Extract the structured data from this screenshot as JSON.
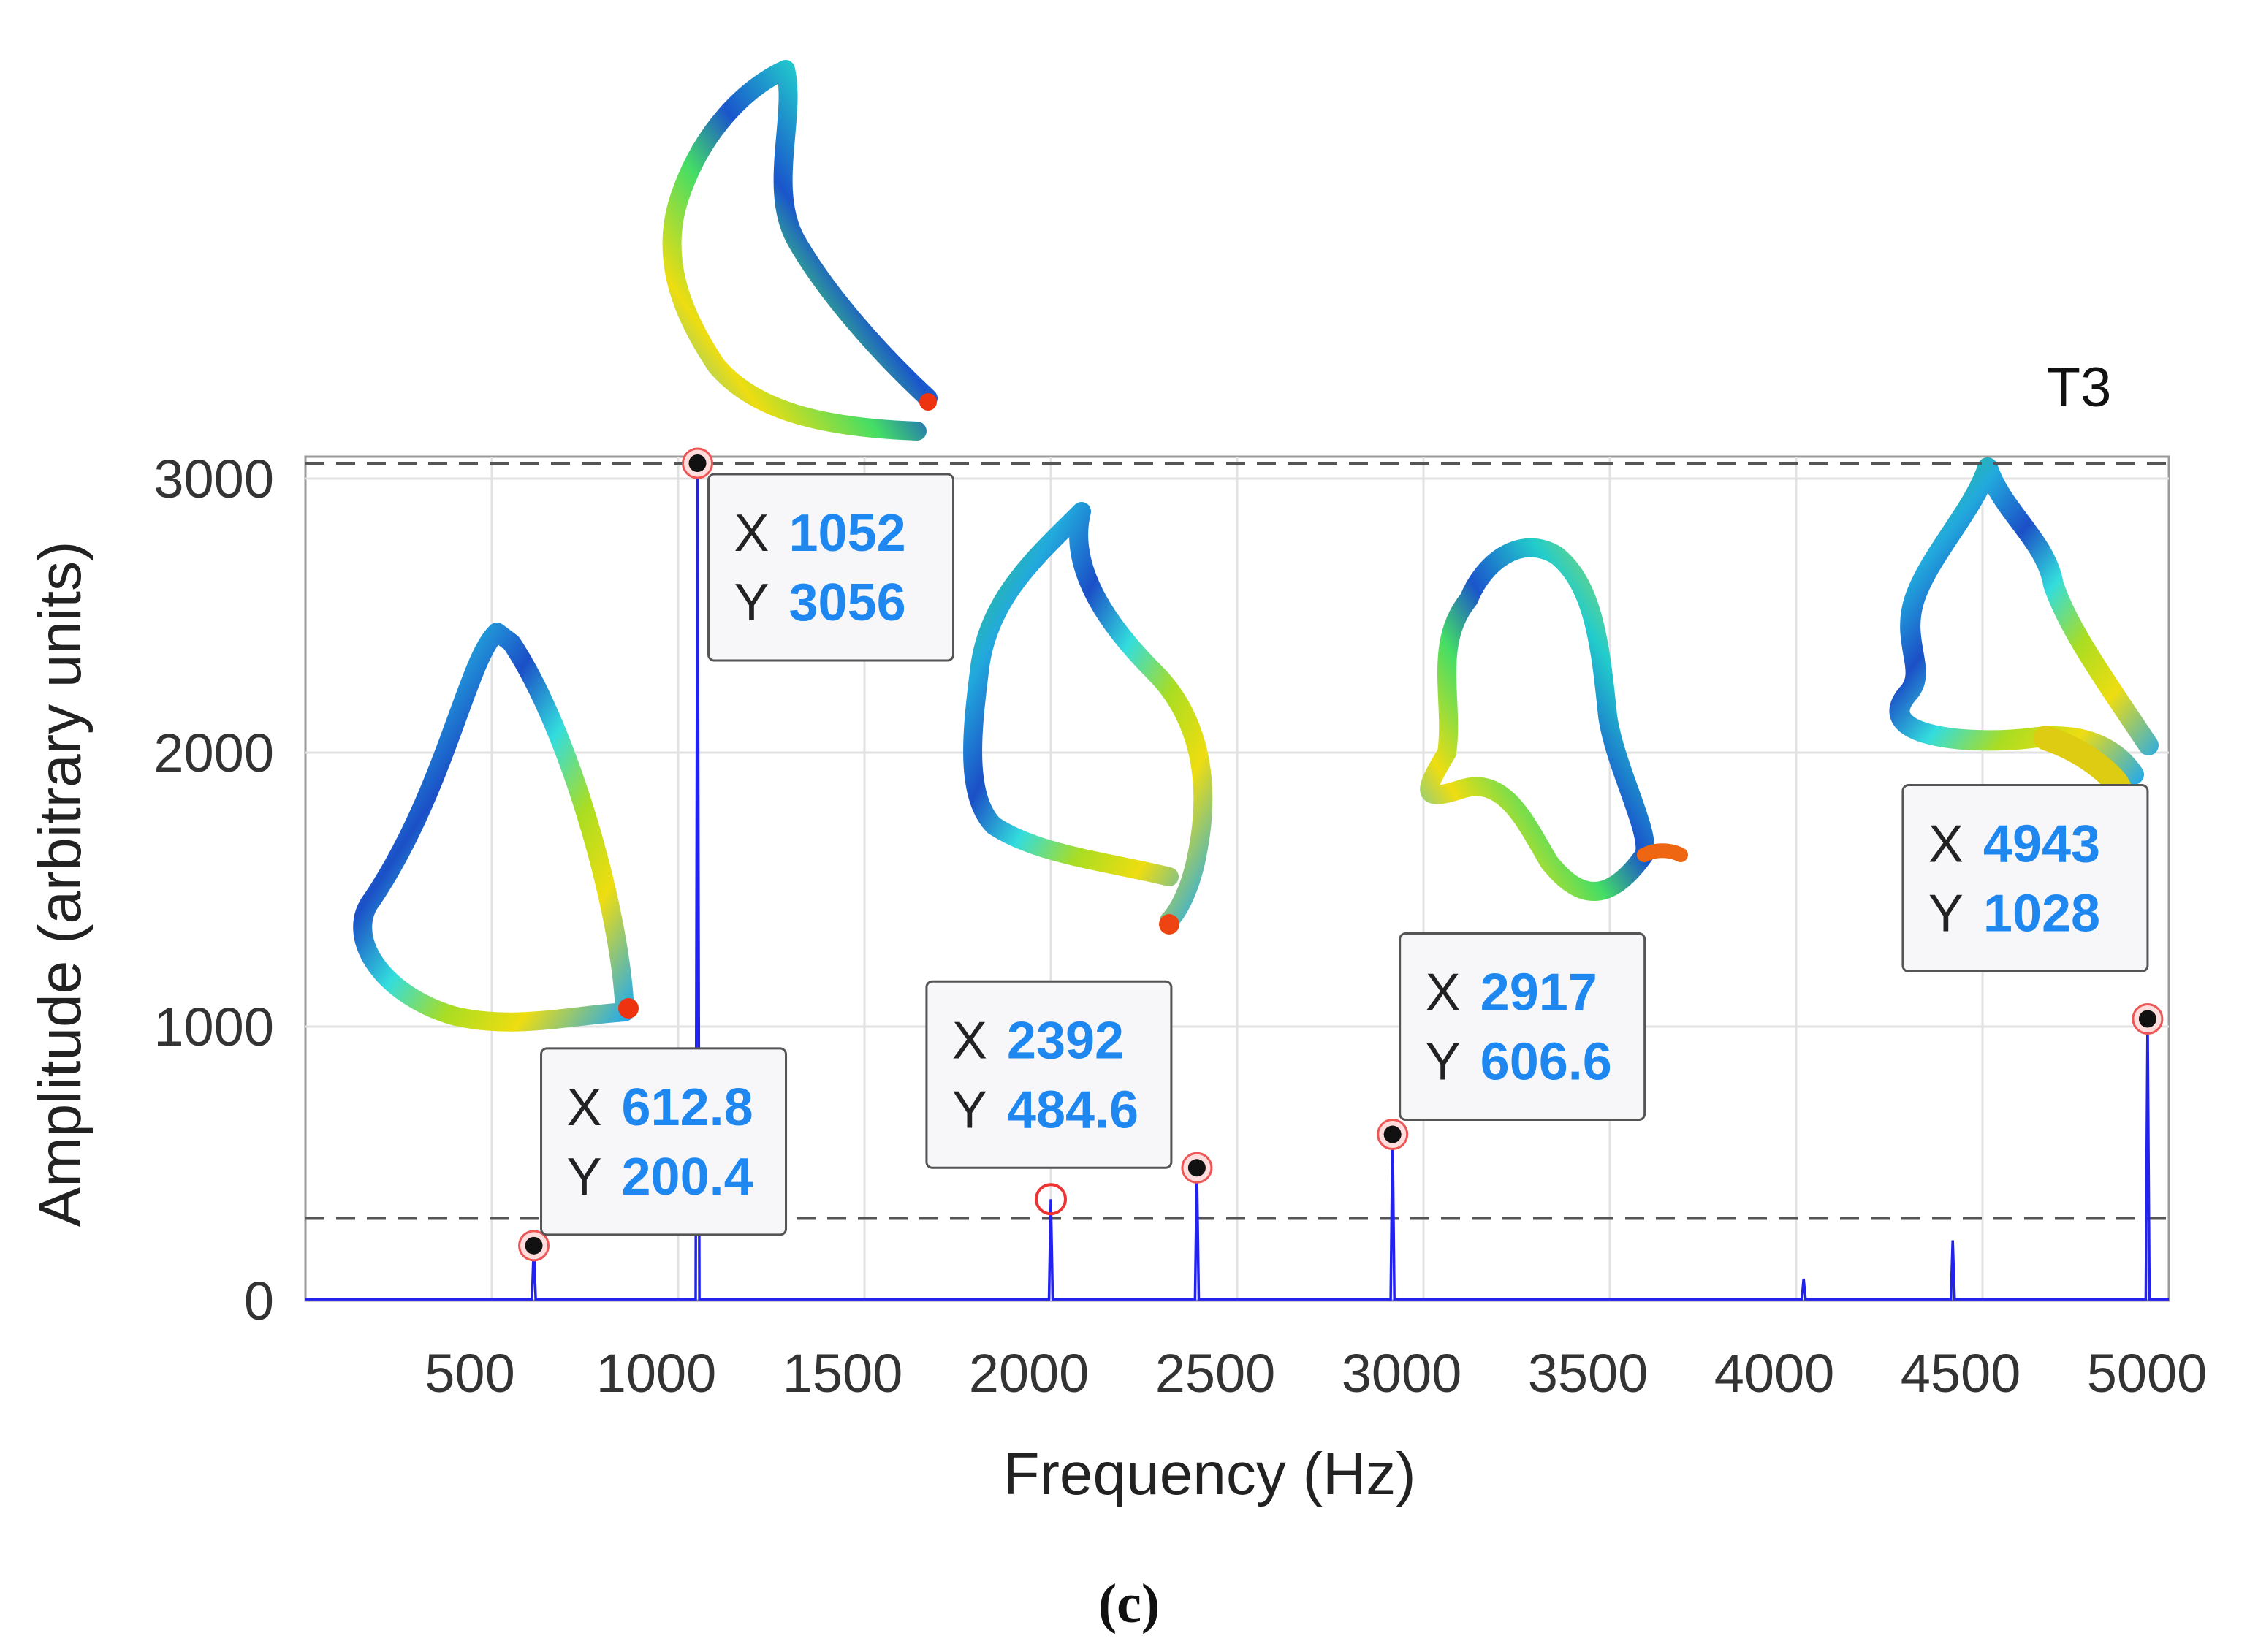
{
  "chart_data": {
    "type": "line",
    "xlabel": "Frequency (Hz)",
    "ylabel": "Amplitude (arbitrary units)",
    "corner_label": "T3",
    "caption": "(c)",
    "xlim": [
      0,
      5000
    ],
    "ylim": [
      0,
      3000
    ],
    "x_ticks": [
      500,
      1000,
      1500,
      2000,
      2500,
      3000,
      3500,
      4000,
      4500,
      5000
    ],
    "y_ticks": [
      0,
      1000,
      2000,
      3000
    ],
    "grid": true,
    "series_color": "#2222ee",
    "peaks": [
      {
        "x": 612.8,
        "y": 200.4
      },
      {
        "x": 1052,
        "y": 3056
      },
      {
        "x": 2000,
        "y": 370
      },
      {
        "x": 2392,
        "y": 484.6
      },
      {
        "x": 2917,
        "y": 606.6
      },
      {
        "x": 4020,
        "y": 80
      },
      {
        "x": 4420,
        "y": 220
      },
      {
        "x": 4943,
        "y": 1028
      }
    ],
    "datatips": [
      {
        "x_label": "X",
        "y_label": "Y",
        "x": "612.8",
        "y": "200.4"
      },
      {
        "x_label": "X",
        "y_label": "Y",
        "x": "1052",
        "y": "3056"
      },
      {
        "x_label": "X",
        "y_label": "Y",
        "x": "2392",
        "y": "484.6"
      },
      {
        "x_label": "X",
        "y_label": "Y",
        "x": "2917",
        "y": "606.6"
      },
      {
        "x_label": "X",
        "y_label": "Y",
        "x": "4943",
        "y": "1028"
      }
    ],
    "threshold_lines": [
      3056,
      300
    ]
  }
}
